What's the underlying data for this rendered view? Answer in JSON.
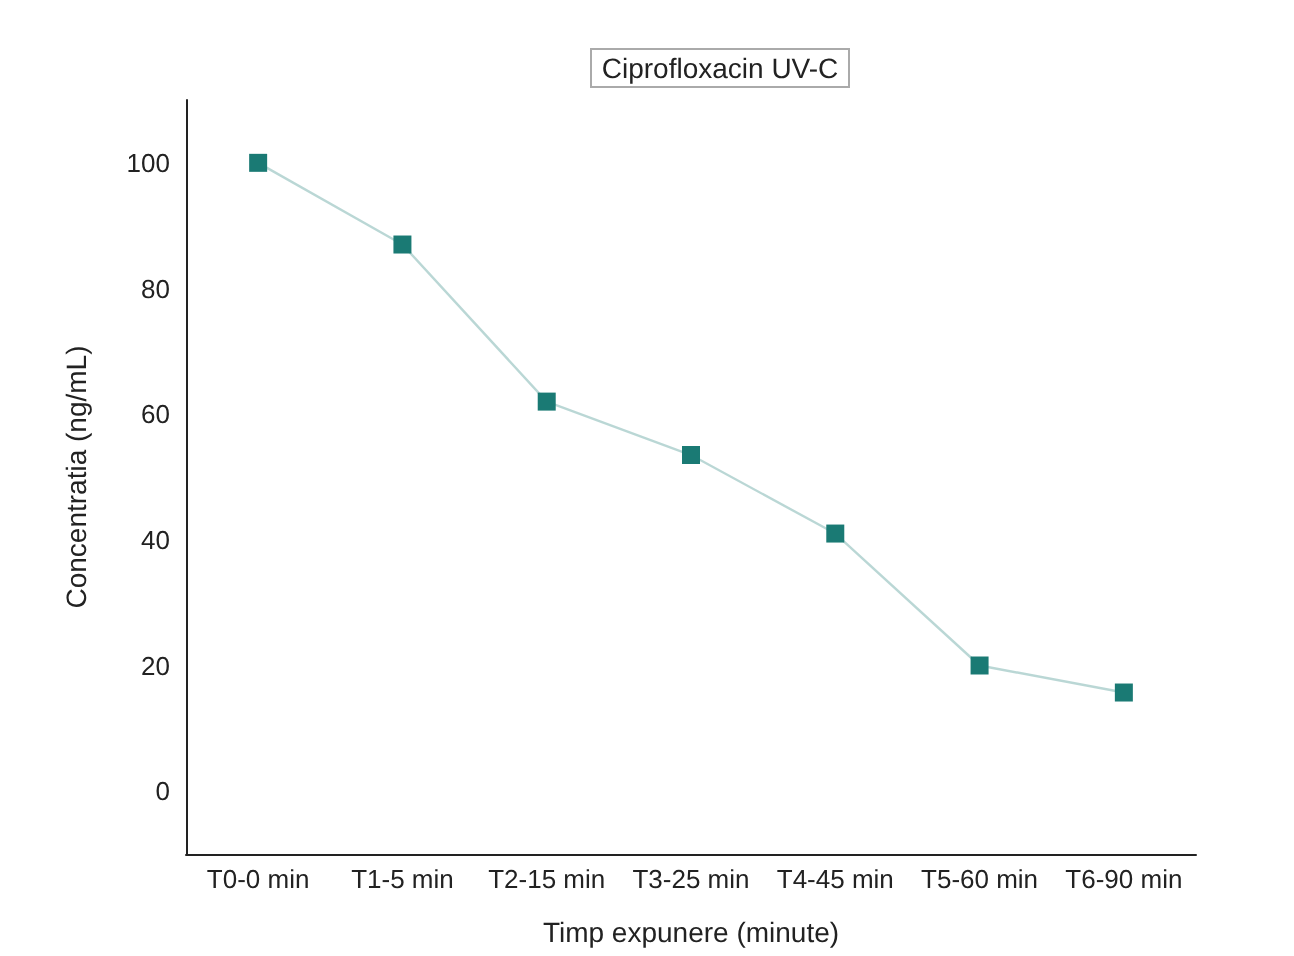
{
  "chart_data": {
    "type": "line",
    "title": "Ciprofloxacin UV-C",
    "xlabel": "Timp expunere (minute)",
    "ylabel": "Concentratia (ng/mL)",
    "categories": [
      "T0-0 min",
      "T1-5 min",
      "T2-15 min",
      "T3-25 min",
      "T4-45 min",
      "T5-60 min",
      "T6-90 min"
    ],
    "series": [
      {
        "color": "#1a7a74",
        "values": [
          100,
          87,
          62,
          53.5,
          41,
          20,
          15.7
        ]
      }
    ],
    "ylim": [
      -10,
      110
    ],
    "yticks": [
      0,
      20,
      40,
      60,
      80,
      100
    ],
    "marker": "square",
    "line_style": "solid"
  }
}
